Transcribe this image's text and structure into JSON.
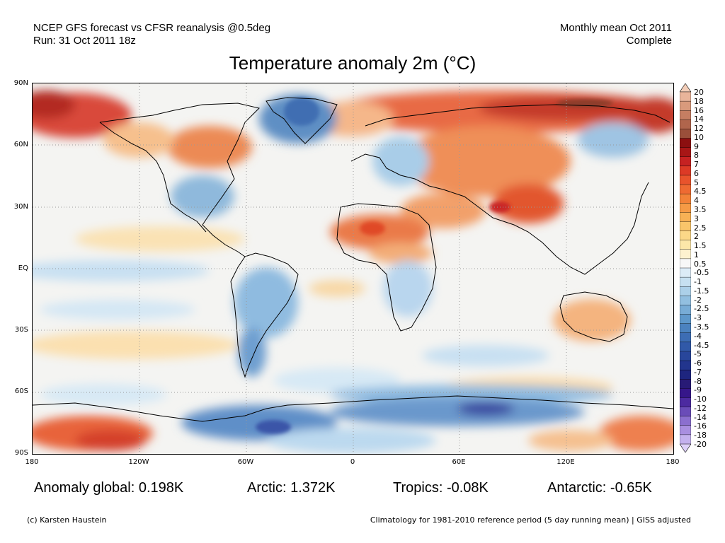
{
  "header": {
    "line1_left": "NCEP GFS forecast vs CFSR reanalysis @0.5deg",
    "line2_left": "Run: 31 Oct 2011 18z",
    "line1_right": "Monthly mean Oct 2011",
    "line2_right": "Complete"
  },
  "title": "Temperature anomaly 2m (°C)",
  "lat_labels": [
    "90N",
    "60N",
    "30N",
    "EQ",
    "30S",
    "60S",
    "90S"
  ],
  "lon_labels": [
    "180",
    "120W",
    "60W",
    "0",
    "60E",
    "120E",
    "180"
  ],
  "colorbar": {
    "labels": [
      "20",
      "18",
      "16",
      "14",
      "12",
      "10",
      "9",
      "8",
      "7",
      "6",
      "5",
      "4.5",
      "4",
      "3.5",
      "3",
      "2.5",
      "2",
      "1.5",
      "1",
      "0.5",
      "-0.5",
      "-1",
      "-1.5",
      "-2",
      "-2.5",
      "-3",
      "-3.5",
      "-4",
      "-4.5",
      "-5",
      "-6",
      "-7",
      "-8",
      "-9",
      "-10",
      "-12",
      "-14",
      "-16",
      "-18",
      "-20"
    ],
    "colors": [
      "#f2cdb8",
      "#e8b49a",
      "#d99a7c",
      "#c57e62",
      "#b0654c",
      "#9a4f3a",
      "#8c0f10",
      "#a81616",
      "#c62222",
      "#dc3a26",
      "#e8532c",
      "#ee6a32",
      "#f28238",
      "#f59a45",
      "#f7b155",
      "#f9c56a",
      "#fbd888",
      "#fce7a9",
      "#fdf2cf",
      "#f7f7f7",
      "#dcecf7",
      "#c6e0f1",
      "#acd0e9",
      "#92bfe0",
      "#78acd6",
      "#5e98cb",
      "#4b82bf",
      "#3d6db4",
      "#3159a8",
      "#28469b",
      "#22358d",
      "#1e257f",
      "#281a76",
      "#36168a",
      "#4c2aa0",
      "#6a4cb8",
      "#8b6fcf",
      "#a98fe0",
      "#c4b1ee",
      "#ddd0f8"
    ]
  },
  "stats": {
    "global": "Anomaly global: 0.198K",
    "arctic": "Arctic: 1.372K",
    "tropics": "Tropics: -0.08K",
    "antarctic": "Antarctic: -0.65K"
  },
  "footer": {
    "copyright": "(c) Karsten Haustein",
    "climatology": "Climatology for 1981-2010 reference period (5 day running mean) | GISS adjusted"
  }
}
